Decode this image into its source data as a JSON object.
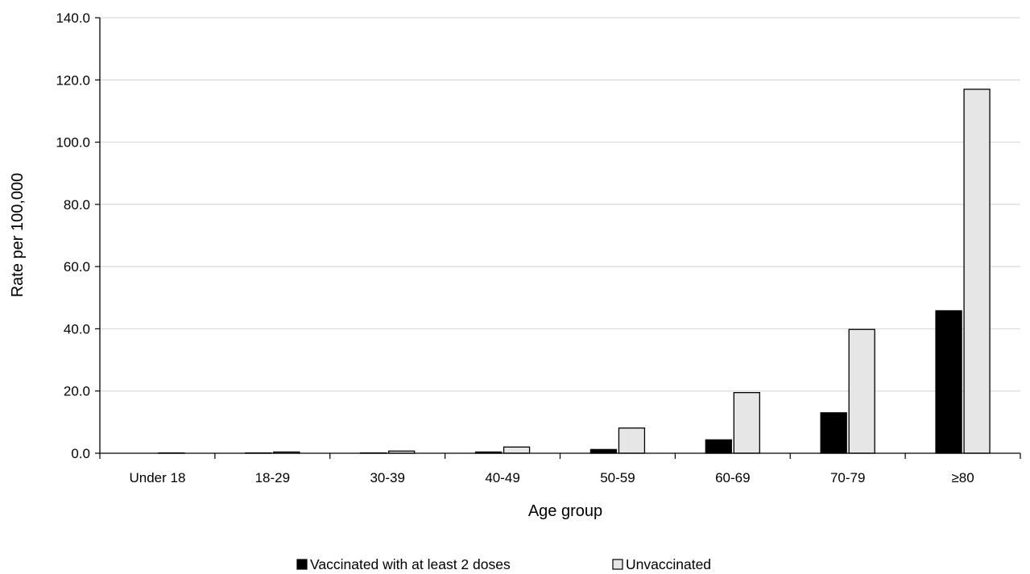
{
  "chart_data": {
    "type": "bar",
    "title": "",
    "xlabel": "Age group",
    "ylabel": "Rate per 100,000",
    "ylim": [
      0,
      140
    ],
    "ytick_step": 20,
    "ytick_labels": [
      "0.0",
      "20.0",
      "40.0",
      "60.0",
      "80.0",
      "100.0",
      "120.0",
      "140.0"
    ],
    "categories": [
      "Under 18",
      "18-29",
      "30-39",
      "40-49",
      "50-59",
      "60-69",
      "70-79",
      "≥80"
    ],
    "series": [
      {
        "name": "Vaccinated with at least 2 doses",
        "color": "#000000",
        "values": [
          0.0,
          0.1,
          0.1,
          0.4,
          1.2,
          4.3,
          13.0,
          45.8
        ]
      },
      {
        "name": "Unvaccinated",
        "color": "#e6e6e6",
        "values": [
          0.1,
          0.4,
          0.7,
          2.0,
          8.1,
          19.5,
          39.8,
          117.0
        ]
      }
    ],
    "grid": true,
    "legend_position": "bottom-center"
  }
}
